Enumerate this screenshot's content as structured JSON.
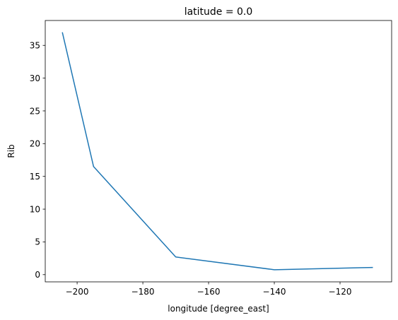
{
  "chart_data": {
    "type": "line",
    "title": "latitude = 0.0",
    "xlabel": "longitude [degree_east]",
    "ylabel": "Rib",
    "xlim": [
      -209.7,
      -104.3
    ],
    "ylim": [
      -1.1,
      38.8
    ],
    "xticks": [
      -200,
      -180,
      -160,
      -140,
      -120
    ],
    "yticks": [
      0,
      5,
      10,
      15,
      20,
      25,
      30,
      35
    ],
    "grid": false,
    "series": [
      {
        "color": "#1f77b4",
        "x": [
          -204.5,
          -195.0,
          -170.0,
          -140.0,
          -110.0
        ],
        "y": [
          37.0,
          16.5,
          2.7,
          0.75,
          1.1
        ]
      }
    ]
  }
}
